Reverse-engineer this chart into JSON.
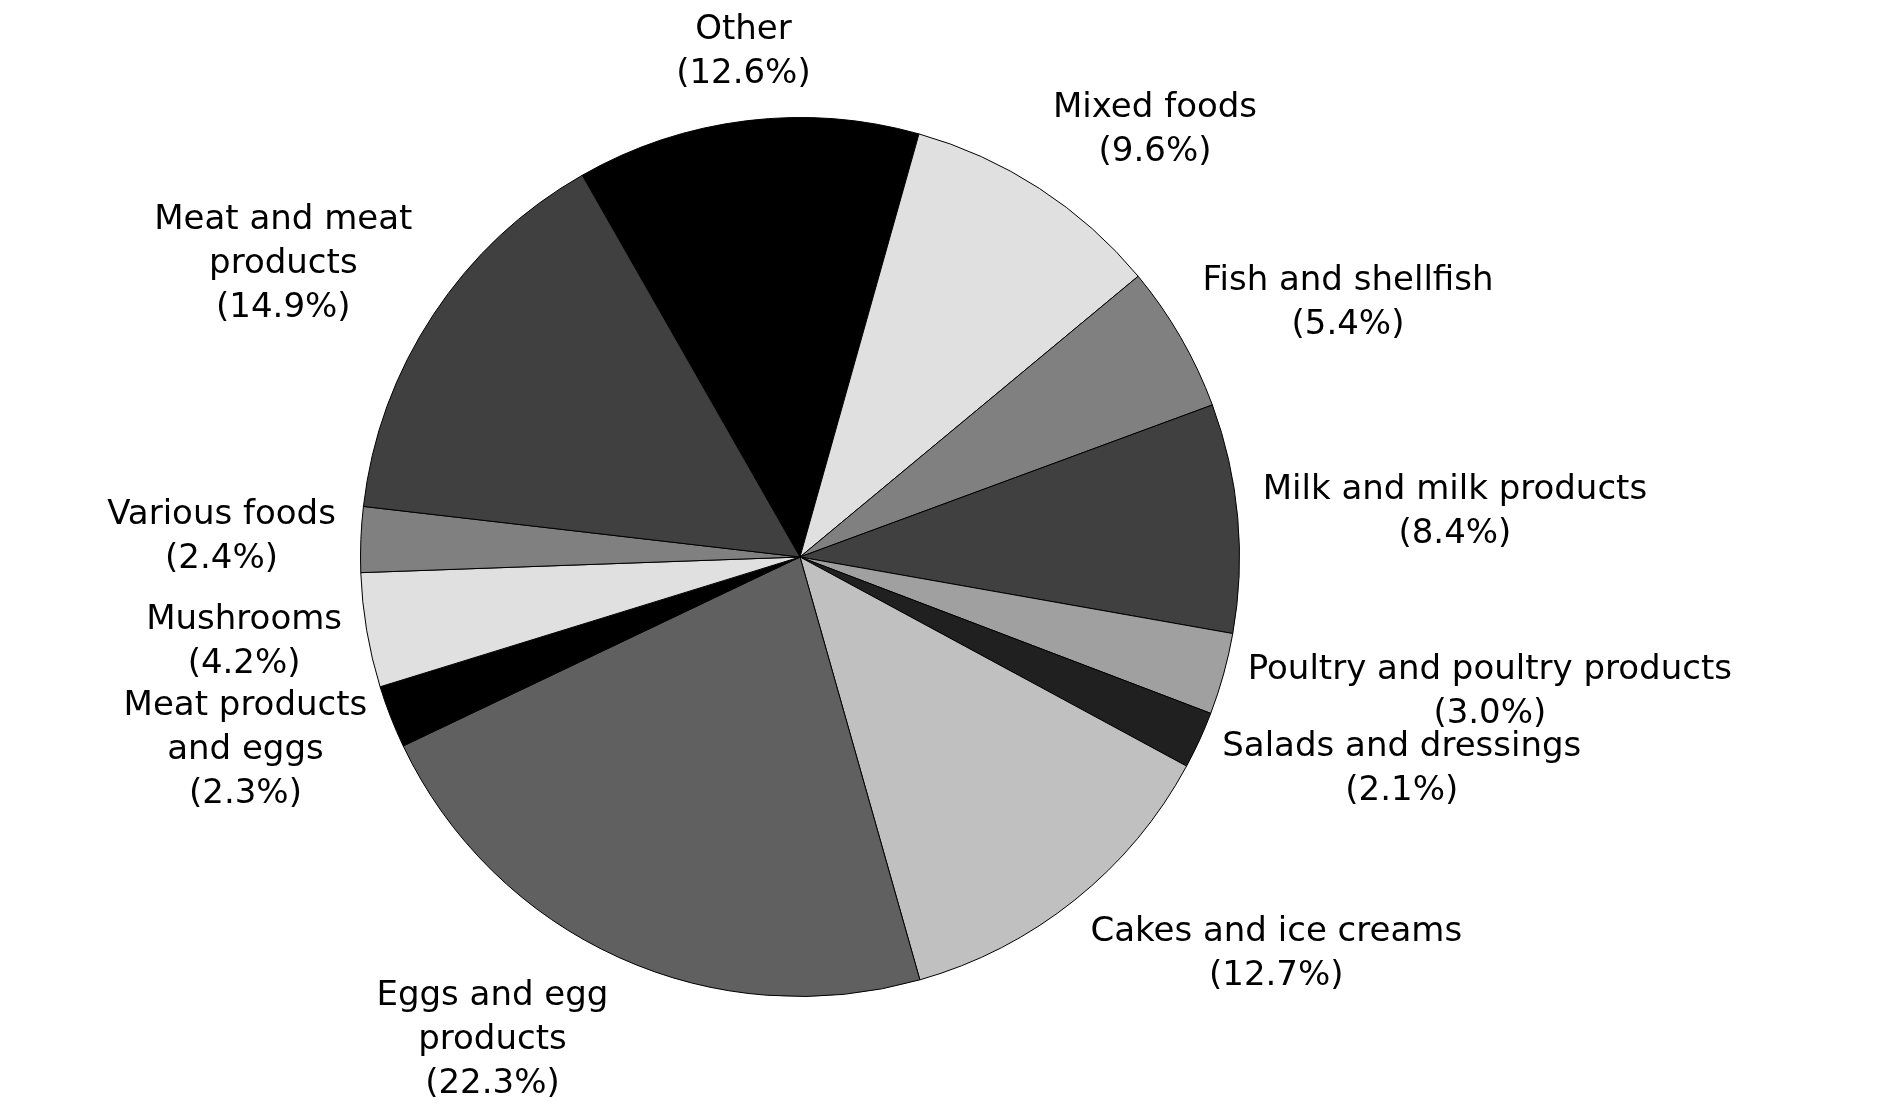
{
  "chart_data": {
    "type": "pie",
    "categories": [
      "Other",
      "Mixed foods",
      "Fish and shellfish",
      "Milk and milk products",
      "Poultry and poultry products",
      "Salads and dressings",
      "Cakes and ice creams",
      "Eggs and egg products",
      "Meat products and eggs",
      "Mushrooms",
      "Various foods",
      "Meat and meat products"
    ],
    "values": [
      12.6,
      9.6,
      5.4,
      8.4,
      3.0,
      2.1,
      12.7,
      22.3,
      2.3,
      4.2,
      2.4,
      14.9
    ],
    "value_labels": [
      "(12.6%)",
      "(9.6%)",
      "(5.4%)",
      "(8.4%)",
      "(3.0%)",
      "(2.1%)",
      "(12.7%)",
      "(22.3%)",
      "(2.3%)",
      "(4.2%)",
      "(2.4%)",
      "(14.9%)"
    ],
    "colors": [
      "#000000",
      "#e0e0e0",
      "#808080",
      "#404040",
      "#a0a0a0",
      "#202020",
      "#c0c0c0",
      "#606060",
      "#000000",
      "#e0e0e0",
      "#808080",
      "#404040"
    ],
    "legend": false
  }
}
